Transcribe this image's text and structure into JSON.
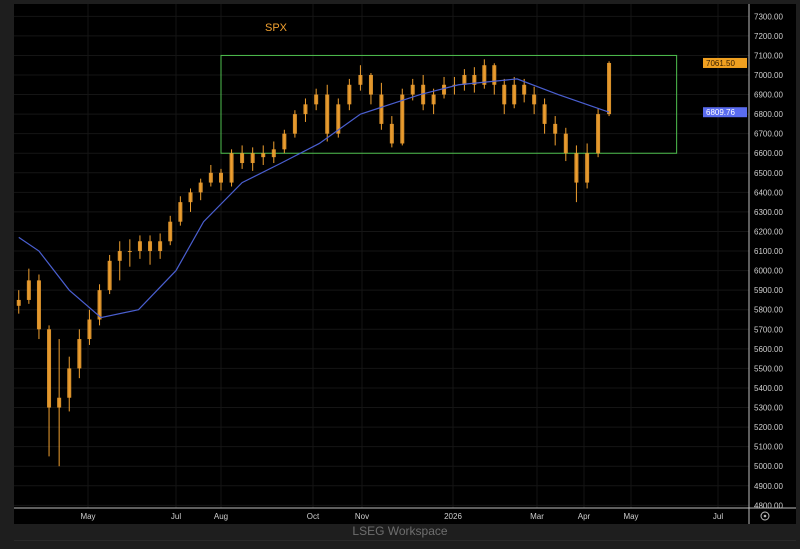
{
  "footer": "LSEG Workspace",
  "chart_data": {
    "type": "candlestick",
    "title": "SPX",
    "colors": {
      "price": "#f0a030",
      "moving_average": "#4a5fd0",
      "range_box": "#4fc04f",
      "last_label_bg": "#f0a020",
      "ma_label_bg": "#5a6cf0"
    },
    "ylim": [
      4800,
      7300
    ],
    "yticks": [
      4800,
      4900,
      5000,
      5100,
      5200,
      5300,
      5400,
      5500,
      5600,
      5700,
      5800,
      5900,
      6000,
      6100,
      6200,
      6300,
      6400,
      6500,
      6600,
      6700,
      6800,
      6900,
      7000,
      7100,
      7200,
      7300
    ],
    "xticks": [
      {
        "label": "May",
        "date": "2025-05-01"
      },
      {
        "label": "Jul",
        "date": "2025-07-01"
      },
      {
        "label": "Aug",
        "date": "2025-08-01"
      },
      {
        "label": "Oct",
        "date": "2025-10-01"
      },
      {
        "label": "Nov",
        "date": "2025-11-01"
      },
      {
        "label": "2026",
        "date": "2026-01-01"
      },
      {
        "label": "Mar",
        "date": "2026-03-01"
      },
      {
        "label": "Apr",
        "date": "2026-04-01"
      },
      {
        "label": "May",
        "date": "2026-05-01"
      },
      {
        "label": "Jul",
        "date": "2026-07-01"
      }
    ],
    "last_price": "7061.50",
    "ma_value": "6809.76",
    "range_box": {
      "start": "2025-08-01",
      "end": "2026-06-02",
      "low": 6600,
      "high": 7100
    },
    "ohlc": [
      [
        "2025-03-14",
        5820,
        5900,
        5780,
        5850
      ],
      [
        "2025-03-21",
        5850,
        6010,
        5830,
        5950
      ],
      [
        "2025-03-28",
        5950,
        5980,
        5650,
        5700
      ],
      [
        "2025-04-04",
        5700,
        5720,
        5050,
        5300
      ],
      [
        "2025-04-11",
        5300,
        5650,
        5000,
        5350
      ],
      [
        "2025-04-18",
        5350,
        5560,
        5280,
        5500
      ],
      [
        "2025-04-25",
        5500,
        5700,
        5450,
        5650
      ],
      [
        "2025-05-02",
        5650,
        5800,
        5620,
        5750
      ],
      [
        "2025-05-09",
        5750,
        5930,
        5720,
        5900
      ],
      [
        "2025-05-16",
        5900,
        6080,
        5880,
        6050
      ],
      [
        "2025-05-23",
        6050,
        6150,
        5950,
        6100
      ],
      [
        "2025-05-30",
        6100,
        6160,
        6020,
        6100
      ],
      [
        "2025-06-06",
        6100,
        6180,
        6060,
        6150
      ],
      [
        "2025-06-13",
        6150,
        6180,
        6030,
        6100
      ],
      [
        "2025-06-20",
        6100,
        6190,
        6060,
        6150
      ],
      [
        "2025-06-27",
        6150,
        6280,
        6130,
        6250
      ],
      [
        "2025-07-04",
        6250,
        6380,
        6230,
        6350
      ],
      [
        "2025-07-11",
        6350,
        6420,
        6300,
        6400
      ],
      [
        "2025-07-18",
        6400,
        6470,
        6360,
        6450
      ],
      [
        "2025-07-25",
        6450,
        6540,
        6430,
        6500
      ],
      [
        "2025-08-01",
        6500,
        6520,
        6410,
        6450
      ],
      [
        "2025-08-08",
        6450,
        6620,
        6430,
        6600
      ],
      [
        "2025-08-15",
        6600,
        6640,
        6520,
        6550
      ],
      [
        "2025-08-22",
        6550,
        6630,
        6510,
        6600
      ],
      [
        "2025-08-29",
        6600,
        6640,
        6540,
        6580
      ],
      [
        "2025-09-05",
        6580,
        6660,
        6550,
        6620
      ],
      [
        "2025-09-12",
        6620,
        6720,
        6600,
        6700
      ],
      [
        "2025-09-19",
        6700,
        6820,
        6680,
        6800
      ],
      [
        "2025-09-26",
        6800,
        6880,
        6760,
        6850
      ],
      [
        "2025-10-03",
        6850,
        6930,
        6820,
        6900
      ],
      [
        "2025-10-10",
        6900,
        6950,
        6660,
        6700
      ],
      [
        "2025-10-17",
        6700,
        6880,
        6680,
        6850
      ],
      [
        "2025-10-24",
        6850,
        6980,
        6820,
        6950
      ],
      [
        "2025-10-31",
        6950,
        7050,
        6920,
        7000
      ],
      [
        "2025-11-07",
        7000,
        7010,
        6850,
        6900
      ],
      [
        "2025-11-14",
        6900,
        6960,
        6720,
        6750
      ],
      [
        "2025-11-21",
        6750,
        6790,
        6630,
        6650
      ],
      [
        "2025-11-28",
        6650,
        6930,
        6640,
        6900
      ],
      [
        "2025-12-05",
        6900,
        6980,
        6870,
        6950
      ],
      [
        "2025-12-12",
        6950,
        7000,
        6820,
        6850
      ],
      [
        "2025-12-19",
        6850,
        6930,
        6800,
        6900
      ],
      [
        "2025-12-26",
        6900,
        6990,
        6880,
        6950
      ],
      [
        "2026-01-02",
        6950,
        6990,
        6900,
        6950
      ],
      [
        "2026-01-09",
        6950,
        7030,
        6920,
        7000
      ],
      [
        "2026-01-16",
        7000,
        7040,
        6910,
        6950
      ],
      [
        "2026-01-23",
        6950,
        7080,
        6930,
        7050
      ],
      [
        "2026-01-30",
        7050,
        7060,
        6900,
        6950
      ],
      [
        "2026-02-06",
        6950,
        6980,
        6800,
        6850
      ],
      [
        "2026-02-13",
        6850,
        6990,
        6830,
        6950
      ],
      [
        "2026-02-20",
        6950,
        6980,
        6860,
        6900
      ],
      [
        "2026-02-27",
        6900,
        6940,
        6800,
        6850
      ],
      [
        "2026-03-06",
        6850,
        6880,
        6700,
        6750
      ],
      [
        "2026-03-13",
        6750,
        6790,
        6640,
        6700
      ],
      [
        "2026-03-20",
        6700,
        6730,
        6560,
        6600
      ],
      [
        "2026-03-27",
        6600,
        6640,
        6350,
        6450
      ],
      [
        "2026-04-03",
        6450,
        6650,
        6420,
        6600
      ],
      [
        "2026-04-10",
        6600,
        6830,
        6580,
        6800
      ],
      [
        "2026-04-17",
        6800,
        7070,
        6790,
        7061.5
      ]
    ],
    "moving_average": [
      [
        "2025-03-14",
        6170
      ],
      [
        "2025-03-28",
        6100
      ],
      [
        "2025-04-18",
        5900
      ],
      [
        "2025-05-10",
        5760
      ],
      [
        "2025-06-05",
        5800
      ],
      [
        "2025-07-01",
        6000
      ],
      [
        "2025-07-20",
        6250
      ],
      [
        "2025-08-15",
        6450
      ],
      [
        "2025-09-10",
        6550
      ],
      [
        "2025-10-05",
        6650
      ],
      [
        "2025-10-31",
        6800
      ],
      [
        "2025-12-10",
        6900
      ],
      [
        "2026-01-05",
        6950
      ],
      [
        "2026-02-15",
        6980
      ],
      [
        "2026-03-15",
        6900
      ],
      [
        "2026-04-17",
        6810
      ]
    ]
  }
}
